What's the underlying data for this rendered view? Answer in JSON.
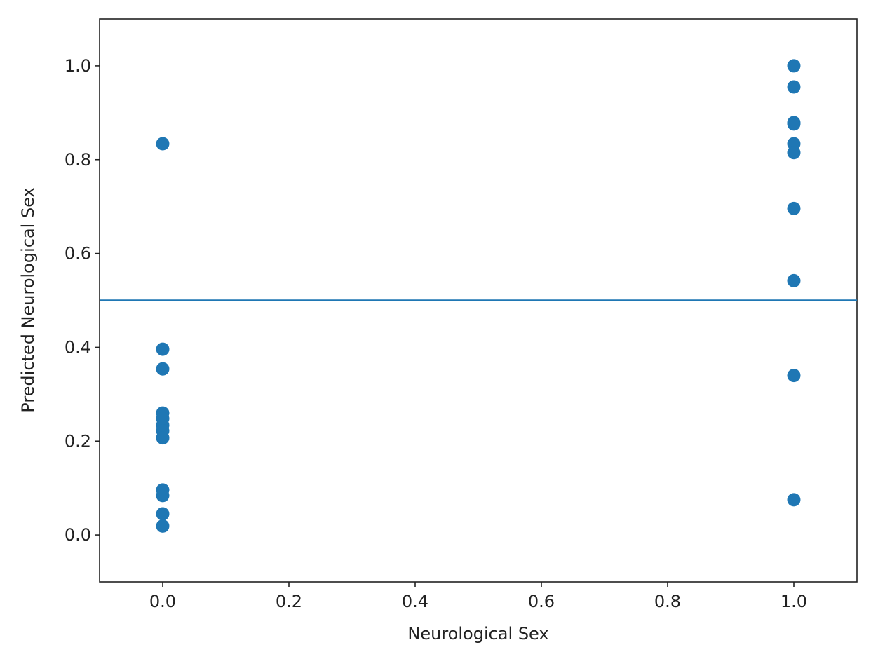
{
  "chart_data": {
    "type": "scatter",
    "xlabel": "Neurological Sex",
    "ylabel": "Predicted Neurological Sex",
    "xlim": [
      -0.1,
      1.1
    ],
    "ylim": [
      -0.1,
      1.1
    ],
    "xticks": [
      {
        "value": 0,
        "label": "0.0"
      },
      0.2,
      0.4,
      0.6,
      0.8,
      {
        "value": 1,
        "label": "1.0"
      }
    ],
    "yticks": [
      {
        "value": 0,
        "label": "0.0"
      },
      0.2,
      0.4,
      0.6,
      0.8,
      {
        "value": 1,
        "label": "1.0"
      }
    ],
    "grid": false,
    "hline": {
      "value": 0.5,
      "color": "#1f77b4"
    },
    "series": [
      {
        "color": "#1f77b4",
        "x": [
          0,
          0,
          0,
          0,
          0,
          0,
          0,
          0,
          0,
          0,
          0,
          0,
          1,
          1,
          1,
          1,
          1,
          1,
          1,
          1,
          1,
          1
        ],
        "values": [
          0.834,
          0.396,
          0.354,
          0.26,
          0.248,
          0.234,
          0.222,
          0.207,
          0.096,
          0.084,
          0.045,
          0.019,
          1.0,
          0.955,
          0.879,
          0.876,
          0.834,
          0.815,
          0.696,
          0.542,
          0.34,
          0.075
        ]
      }
    ]
  }
}
